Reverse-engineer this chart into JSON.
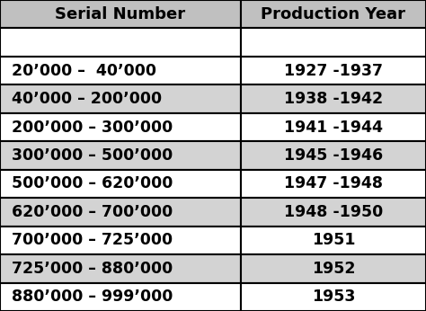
{
  "headers": [
    "Serial Number",
    "Production Year"
  ],
  "rows": [
    [
      "20’000 –  40’000",
      "1927 -1937"
    ],
    [
      "40’000 – 200’000",
      "1938 -1942"
    ],
    [
      "200’000 – 300’000",
      "1941 -1944"
    ],
    [
      "300’000 – 500’000",
      "1945 -1946"
    ],
    [
      "500’000 – 620’000",
      "1947 -1948"
    ],
    [
      "620’000 – 700’000",
      "1948 -1950"
    ],
    [
      "700’000 – 725’000",
      "1951"
    ],
    [
      "725’000 – 880’000",
      "1952"
    ],
    [
      "880’000 – 999’000",
      "1953"
    ]
  ],
  "header_bg": "#c0c0c0",
  "blank_row_bg": "#ffffff",
  "row_colors": [
    "#ffffff",
    "#d3d3d3",
    "#ffffff",
    "#d3d3d3",
    "#ffffff",
    "#d3d3d3",
    "#ffffff",
    "#d3d3d3",
    "#ffffff"
  ],
  "header_font_size": 13,
  "row_font_size": 12.5,
  "border_color": "#000000",
  "text_color": "#000000",
  "col_split": 0.565,
  "fig_width": 4.74,
  "fig_height": 3.46,
  "dpi": 100
}
